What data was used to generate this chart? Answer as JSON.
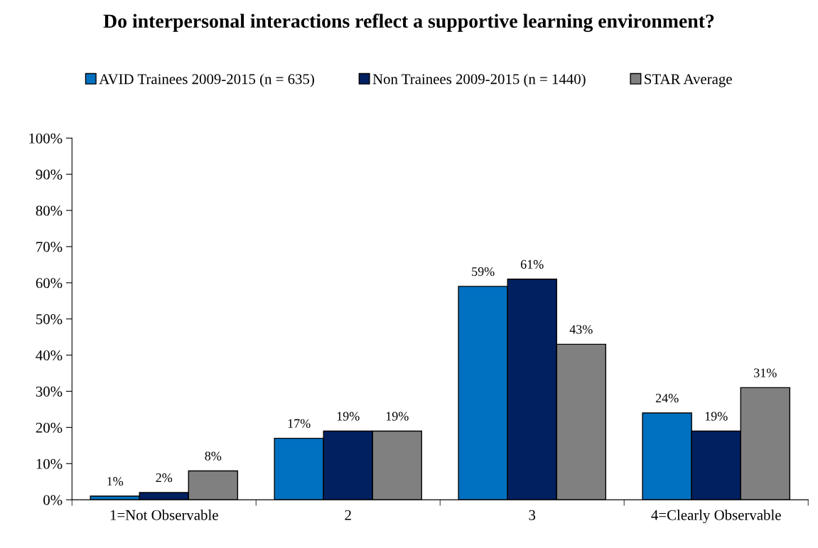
{
  "chart_data": {
    "type": "bar",
    "title": "Do interpersonal interactions reflect a supportive learning environment?",
    "categories": [
      "1=Not Observable",
      "2",
      "3",
      "4=Clearly Observable"
    ],
    "series": [
      {
        "name": "AVID Trainees 2009-2015 (n = 635)",
        "color": "#0070c0",
        "values": [
          1,
          17,
          59,
          24
        ],
        "value_labels": [
          "1%",
          "17%",
          "59%",
          "24%"
        ]
      },
      {
        "name": "Non Trainees 2009-2015 (n = 1440)",
        "color": "#002060",
        "values": [
          2,
          19,
          61,
          19
        ],
        "value_labels": [
          "2%",
          "19%",
          "61%",
          "19%"
        ]
      },
      {
        "name": "STAR Average",
        "color": "#808080",
        "values": [
          8,
          19,
          43,
          31
        ],
        "value_labels": [
          "8%",
          "19%",
          "43%",
          "31%"
        ]
      }
    ],
    "ylim": [
      0,
      100
    ],
    "yticks": [
      {
        "value": 0,
        "label": "0%"
      },
      {
        "value": 10,
        "label": "10%"
      },
      {
        "value": 20,
        "label": "20%"
      },
      {
        "value": 30,
        "label": "30%"
      },
      {
        "value": 40,
        "label": "40%"
      },
      {
        "value": 50,
        "label": "50%"
      },
      {
        "value": 60,
        "label": "60%"
      },
      {
        "value": 70,
        "label": "70%"
      },
      {
        "value": 80,
        "label": "80%"
      },
      {
        "value": 90,
        "label": "90%"
      },
      {
        "value": 100,
        "label": "100%"
      }
    ],
    "grid": false,
    "legend": "top"
  }
}
